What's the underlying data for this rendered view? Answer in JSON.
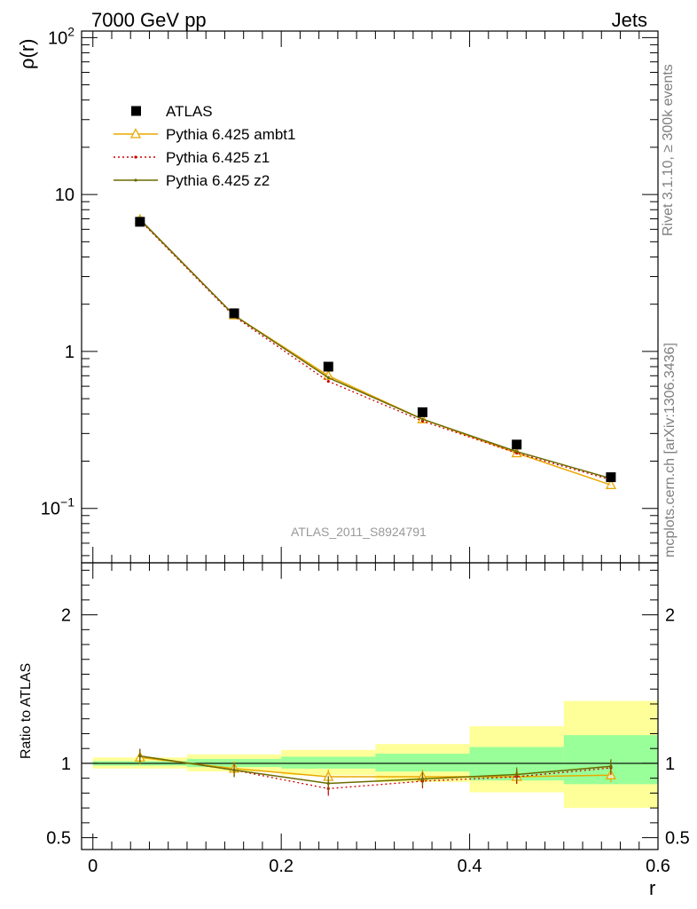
{
  "header": {
    "left": "7000 GeV pp",
    "right": "Jets"
  },
  "side_text": {
    "top": "Rivet 3.1.10, ≥ 300k events",
    "bottom": "mcplots.cern.ch [arXiv:1306.3436]"
  },
  "analysis_tag": "ATLAS_2011_S8924791",
  "chart_data": [
    {
      "type": "line",
      "panel": "main",
      "yscale": "log",
      "ylabel": "ρ(r)",
      "ylim": [
        0.045,
        110
      ],
      "xlim": [
        -0.012,
        0.6
      ],
      "grid": false,
      "legend_position": "top-left",
      "y_ticks": [
        {
          "value": 0.1,
          "base": "10",
          "exp": "−1"
        },
        {
          "value": 1,
          "text": "1"
        },
        {
          "value": 10,
          "text": "10"
        },
        {
          "value": 100,
          "base": "10",
          "exp": "2"
        }
      ],
      "x": [
        0.05,
        0.15,
        0.25,
        0.35,
        0.45,
        0.55
      ],
      "series": [
        {
          "name": "ATLAS",
          "style": "data",
          "color": "#000000",
          "values": [
            6.7,
            1.75,
            0.8,
            0.41,
            0.255,
            0.158
          ]
        },
        {
          "name": "Pythia 6.425 ambt1",
          "style": "triangle",
          "color": "#E8A800",
          "values": [
            6.9,
            1.7,
            0.7,
            0.37,
            0.225,
            0.141
          ]
        },
        {
          "name": "Pythia 6.425 z1",
          "style": "dotted",
          "color": "#CC0000",
          "values": [
            6.85,
            1.67,
            0.645,
            0.36,
            0.225,
            0.152
          ]
        },
        {
          "name": "Pythia 6.425 z2",
          "style": "solid-dot",
          "color": "#6B6B00",
          "values": [
            6.95,
            1.7,
            0.68,
            0.37,
            0.23,
            0.155
          ]
        }
      ]
    },
    {
      "type": "line",
      "panel": "ratio",
      "ylabel": "Ratio to ATLAS",
      "xlabel": "r",
      "ylim": [
        0.42,
        2.35
      ],
      "xlim": [
        -0.012,
        0.6
      ],
      "grid": false,
      "y_ticks": [
        {
          "value": 0.5,
          "text": "0.5"
        },
        {
          "value": 1,
          "text": "1"
        },
        {
          "value": 2,
          "text": "2"
        }
      ],
      "x_ticks": [
        {
          "value": 0,
          "text": "0"
        },
        {
          "value": 0.2,
          "text": "0.2"
        },
        {
          "value": 0.4,
          "text": "0.4"
        },
        {
          "value": 0.6,
          "text": "0.6"
        }
      ],
      "x": [
        0.05,
        0.15,
        0.25,
        0.35,
        0.45,
        0.55
      ],
      "bins": [
        [
          0,
          0.1
        ],
        [
          0.1,
          0.2
        ],
        [
          0.2,
          0.3
        ],
        [
          0.3,
          0.4
        ],
        [
          0.4,
          0.5
        ],
        [
          0.5,
          0.6
        ]
      ],
      "band_stat": [
        [
          0.985,
          1.015
        ],
        [
          0.975,
          1.03
        ],
        [
          0.965,
          1.045
        ],
        [
          0.945,
          1.065
        ],
        [
          0.885,
          1.11
        ],
        [
          0.86,
          1.19
        ]
      ],
      "band_total": [
        [
          0.965,
          1.04
        ],
        [
          0.945,
          1.06
        ],
        [
          0.92,
          1.09
        ],
        [
          0.875,
          1.13
        ],
        [
          0.805,
          1.25
        ],
        [
          0.7,
          1.42
        ]
      ],
      "band_colors": {
        "stat": "#99FF99",
        "total": "#FFFF99"
      },
      "series": [
        {
          "name": "Pythia 6.425 ambt1",
          "style": "triangle",
          "color": "#E8A800",
          "values": [
            1.04,
            0.965,
            0.91,
            0.91,
            0.91,
            0.92
          ]
        },
        {
          "name": "Pythia 6.425 z1",
          "style": "dotted",
          "color": "#CC0000",
          "values": [
            1.05,
            0.955,
            0.83,
            0.88,
            0.91,
            0.97
          ]
        },
        {
          "name": "Pythia 6.425 z2",
          "style": "solid-dot",
          "color": "#6B6B00",
          "values": [
            1.05,
            0.955,
            0.865,
            0.895,
            0.925,
            0.98
          ]
        }
      ]
    }
  ]
}
